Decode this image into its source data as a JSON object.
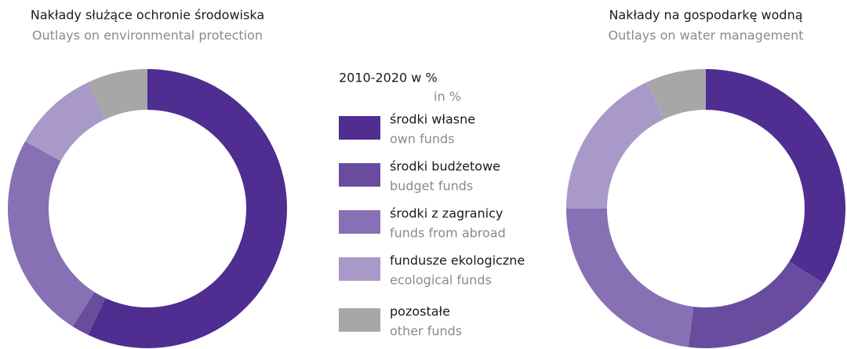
{
  "chart_data": [
    {
      "type": "pie",
      "title": "Nakłady służące ochronie środowiska",
      "subtitle": "Outlays on environmental protection",
      "values": [
        57,
        2,
        24,
        10,
        7
      ],
      "colors": [
        "#4f2d91",
        "#6a4c9f",
        "#8870b5",
        "#a899c9",
        "#a7a7aa"
      ]
    },
    {
      "type": "pie",
      "title": "Nakłady na gospodarkę wodną",
      "subtitle": "Outlays on water management",
      "values": [
        34,
        18,
        23,
        18,
        7
      ],
      "colors": [
        "#4f2d91",
        "#6a4c9f",
        "#8870b5",
        "#a899c9",
        "#a7a7aa"
      ]
    }
  ],
  "legend": {
    "title": "2010-2020 w %",
    "subtitle": "in %",
    "items": [
      {
        "name": "środki własne",
        "name_en": "own funds",
        "color": "#4f2d91"
      },
      {
        "name": "środki budżetowe",
        "name_en": "budget funds",
        "color": "#6a4c9f"
      },
      {
        "name": "środki z zagranicy",
        "name_en": "funds from abroad",
        "color": "#8870b5"
      },
      {
        "name": "fundusze ekologiczne",
        "name_en": "ecological funds",
        "color": "#a899c9"
      },
      {
        "name": "pozostałe",
        "name_en": "other funds",
        "color": "#a7a7aa"
      }
    ]
  }
}
